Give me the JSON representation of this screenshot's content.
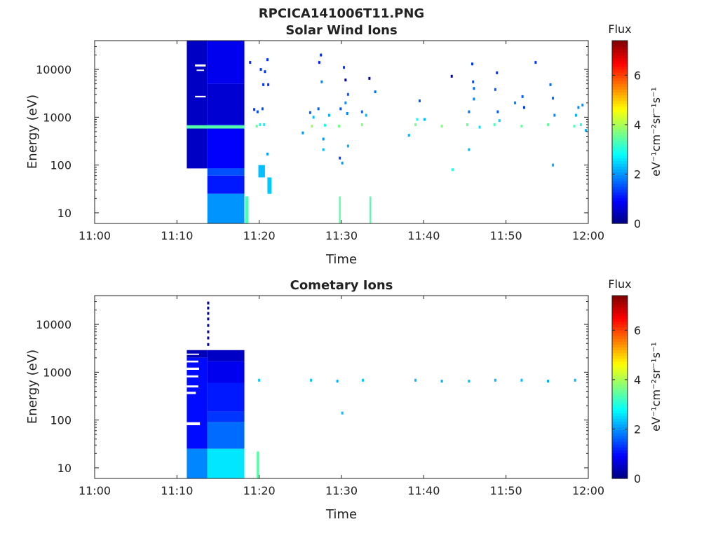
{
  "figure": {
    "title": "RPCICA141006T11.PNG"
  },
  "chart_data": [
    {
      "type": "heatmap",
      "title": "Solar Wind Ions",
      "xlabel": "Time",
      "ylabel": "Energy (eV)",
      "x_ticks": [
        "11:00",
        "11:10",
        "11:20",
        "11:30",
        "11:40",
        "11:50",
        "12:00"
      ],
      "xlim_minutes": [
        0,
        60
      ],
      "y_ticks": [
        "10",
        "100",
        "1000",
        "10000"
      ],
      "y_scale": "log",
      "ylim": [
        6,
        40000
      ],
      "colorbar": {
        "label": "Flux",
        "units": "eV⁻¹cm⁻²sr⁻¹s⁻¹",
        "ticks": [
          "0",
          "2",
          "4",
          "6"
        ],
        "range": [
          0,
          7.4
        ],
        "colormap": "jet"
      },
      "blocks": [
        {
          "t": [
            11.2,
            13.7
          ],
          "e": [
            85,
            40000
          ],
          "v": 0.5
        },
        {
          "t": [
            13.7,
            18.2
          ],
          "e": [
            5000,
            40000
          ],
          "v": 0.8
        },
        {
          "t": [
            13.7,
            18.2
          ],
          "e": [
            700,
            5000
          ],
          "v": 0.6
        },
        {
          "t": [
            13.7,
            18.2
          ],
          "e": [
            85,
            700
          ],
          "v": 0.9
        },
        {
          "t": [
            13.7,
            18.2
          ],
          "e": [
            60,
            85
          ],
          "v": 1.5
        },
        {
          "t": [
            13.7,
            18.2
          ],
          "e": [
            25,
            60
          ],
          "v": 1.1
        },
        {
          "t": [
            13.7,
            18.2
          ],
          "e": [
            6,
            25
          ],
          "v": 2.0
        },
        {
          "t": [
            11.2,
            18.2
          ],
          "e": [
            580,
            680
          ],
          "v": 3.4
        },
        {
          "t": [
            18.3,
            18.7
          ],
          "e": [
            6,
            22
          ],
          "v": 3.3
        },
        {
          "t": [
            29.7,
            29.9
          ],
          "e": [
            6,
            22
          ],
          "v": 3.4
        },
        {
          "t": [
            33.4,
            33.6
          ],
          "e": [
            6,
            22
          ],
          "v": 3.4
        },
        {
          "t": [
            19.9,
            20.7
          ],
          "e": [
            55,
            100
          ],
          "v": 2.3
        },
        {
          "t": [
            21.0,
            21.5
          ],
          "e": [
            25,
            55
          ],
          "v": 2.4
        }
      ],
      "points": [
        {
          "t": 18.9,
          "e": 14000,
          "v": 1.2
        },
        {
          "t": 20.2,
          "e": 10000,
          "v": 1.3
        },
        {
          "t": 20.7,
          "e": 9000,
          "v": 1.3
        },
        {
          "t": 20.5,
          "e": 4800,
          "v": 1.3
        },
        {
          "t": 21.1,
          "e": 4800,
          "v": 1.3
        },
        {
          "t": 21.0,
          "e": 16000,
          "v": 1.3
        },
        {
          "t": 19.4,
          "e": 1450,
          "v": 1.3
        },
        {
          "t": 19.8,
          "e": 1300,
          "v": 1.5
        },
        {
          "t": 20.4,
          "e": 1500,
          "v": 1.5
        },
        {
          "t": 20.1,
          "e": 700,
          "v": 2.9
        },
        {
          "t": 19.7,
          "e": 650,
          "v": 3.5
        },
        {
          "t": 20.6,
          "e": 700,
          "v": 2.7
        },
        {
          "t": 21.0,
          "e": 170,
          "v": 2.1
        },
        {
          "t": 25.3,
          "e": 470,
          "v": 2.0
        },
        {
          "t": 26.2,
          "e": 1250,
          "v": 1.6
        },
        {
          "t": 26.4,
          "e": 650,
          "v": 3.9
        },
        {
          "t": 26.6,
          "e": 1000,
          "v": 2.3
        },
        {
          "t": 27.2,
          "e": 1500,
          "v": 1.6
        },
        {
          "t": 27.5,
          "e": 20000,
          "v": 1.2
        },
        {
          "t": 27.3,
          "e": 14000,
          "v": 1.1
        },
        {
          "t": 27.6,
          "e": 5500,
          "v": 1.9
        },
        {
          "t": 27.8,
          "e": 350,
          "v": 2.0
        },
        {
          "t": 27.8,
          "e": 210,
          "v": 2.3
        },
        {
          "t": 28.0,
          "e": 680,
          "v": 2.9
        },
        {
          "t": 28.5,
          "e": 1100,
          "v": 2.2
        },
        {
          "t": 29.7,
          "e": 650,
          "v": 3.6
        },
        {
          "t": 29.8,
          "e": 140,
          "v": 1.4
        },
        {
          "t": 30.1,
          "e": 110,
          "v": 2.1
        },
        {
          "t": 29.9,
          "e": 1500,
          "v": 1.5
        },
        {
          "t": 30.3,
          "e": 11000,
          "v": 1.3
        },
        {
          "t": 30.5,
          "e": 6000,
          "v": 0.2
        },
        {
          "t": 30.5,
          "e": 2000,
          "v": 2.0
        },
        {
          "t": 30.8,
          "e": 3000,
          "v": 1.6
        },
        {
          "t": 30.7,
          "e": 1200,
          "v": 1.9
        },
        {
          "t": 30.8,
          "e": 250,
          "v": 2.2
        },
        {
          "t": 32.5,
          "e": 700,
          "v": 3.7
        },
        {
          "t": 32.5,
          "e": 1300,
          "v": 1.7
        },
        {
          "t": 33.0,
          "e": 1100,
          "v": 2.3
        },
        {
          "t": 33.4,
          "e": 6500,
          "v": 0.2
        },
        {
          "t": 34.1,
          "e": 3400,
          "v": 1.8
        },
        {
          "t": 38.2,
          "e": 420,
          "v": 2.2
        },
        {
          "t": 39.0,
          "e": 700,
          "v": 3.6
        },
        {
          "t": 39.2,
          "e": 900,
          "v": 2.9
        },
        {
          "t": 39.5,
          "e": 2200,
          "v": 1.6
        },
        {
          "t": 40.1,
          "e": 900,
          "v": 2.3
        },
        {
          "t": 42.2,
          "e": 650,
          "v": 3.7
        },
        {
          "t": 43.4,
          "e": 7200,
          "v": 0.3
        },
        {
          "t": 43.5,
          "e": 80,
          "v": 3.0
        },
        {
          "t": 45.3,
          "e": 700,
          "v": 3.5
        },
        {
          "t": 45.5,
          "e": 1300,
          "v": 1.8
        },
        {
          "t": 45.5,
          "e": 210,
          "v": 2.3
        },
        {
          "t": 45.9,
          "e": 13000,
          "v": 1.3
        },
        {
          "t": 46.0,
          "e": 5500,
          "v": 1.5
        },
        {
          "t": 46.1,
          "e": 4000,
          "v": 1.7
        },
        {
          "t": 46.1,
          "e": 2400,
          "v": 1.9
        },
        {
          "t": 46.8,
          "e": 620,
          "v": 2.6
        },
        {
          "t": 48.6,
          "e": 700,
          "v": 3.3
        },
        {
          "t": 48.7,
          "e": 3800,
          "v": 1.6
        },
        {
          "t": 48.9,
          "e": 8500,
          "v": 1.3
        },
        {
          "t": 49.0,
          "e": 1300,
          "v": 1.6
        },
        {
          "t": 49.2,
          "e": 850,
          "v": 2.5
        },
        {
          "t": 51.1,
          "e": 2000,
          "v": 1.9
        },
        {
          "t": 51.9,
          "e": 650,
          "v": 3.5
        },
        {
          "t": 52.0,
          "e": 2700,
          "v": 1.6
        },
        {
          "t": 52.2,
          "e": 1600,
          "v": 1.3
        },
        {
          "t": 53.6,
          "e": 14000,
          "v": 1.3
        },
        {
          "t": 55.1,
          "e": 700,
          "v": 3.5
        },
        {
          "t": 55.4,
          "e": 4800,
          "v": 1.7
        },
        {
          "t": 55.7,
          "e": 2500,
          "v": 1.7
        },
        {
          "t": 55.7,
          "e": 100,
          "v": 2.2
        },
        {
          "t": 55.9,
          "e": 1100,
          "v": 1.9
        },
        {
          "t": 58.3,
          "e": 650,
          "v": 3.3
        },
        {
          "t": 58.5,
          "e": 1100,
          "v": 2.2
        },
        {
          "t": 58.8,
          "e": 1600,
          "v": 1.9
        },
        {
          "t": 59.3,
          "e": 1800,
          "v": 2.0
        },
        {
          "t": 59.1,
          "e": 700,
          "v": 2.9
        },
        {
          "t": 59.7,
          "e": 530,
          "v": 2.2
        }
      ],
      "whites": [
        {
          "t": [
            12.2,
            13.5
          ],
          "e": [
            11500,
            12700
          ]
        },
        {
          "t": [
            12.4,
            13.3
          ],
          "e": [
            9300,
            9900
          ]
        },
        {
          "t": [
            12.2,
            13.5
          ],
          "e": [
            2600,
            2800
          ]
        }
      ]
    },
    {
      "type": "heatmap",
      "title": "Cometary Ions",
      "xlabel": "Time",
      "ylabel": "Energy (eV)",
      "x_ticks": [
        "11:00",
        "11:10",
        "11:20",
        "11:30",
        "11:40",
        "11:50",
        "12:00"
      ],
      "xlim_minutes": [
        0,
        60
      ],
      "y_ticks": [
        "10",
        "100",
        "1000",
        "10000"
      ],
      "y_scale": "log",
      "ylim": [
        6,
        40000
      ],
      "colorbar": {
        "label": "Flux",
        "units": "eV⁻¹cm⁻²sr⁻¹s⁻¹",
        "ticks": [
          "0",
          "2",
          "4",
          "6"
        ],
        "range": [
          0,
          7.4
        ],
        "colormap": "jet"
      },
      "blocks": [
        {
          "t": [
            11.2,
            13.7
          ],
          "e": [
            2000,
            2900
          ],
          "v": 0.4
        },
        {
          "t": [
            11.2,
            13.7
          ],
          "e": [
            25,
            2000
          ],
          "v": 1.0
        },
        {
          "t": [
            11.2,
            13.7
          ],
          "e": [
            6,
            25
          ],
          "v": 1.9
        },
        {
          "t": [
            13.7,
            18.2
          ],
          "e": [
            1700,
            2900
          ],
          "v": 0.5
        },
        {
          "t": [
            13.7,
            18.2
          ],
          "e": [
            600,
            1700
          ],
          "v": 0.8
        },
        {
          "t": [
            13.7,
            18.2
          ],
          "e": [
            150,
            600
          ],
          "v": 1.1
        },
        {
          "t": [
            13.7,
            18.2
          ],
          "e": [
            90,
            150
          ],
          "v": 1.3
        },
        {
          "t": [
            13.7,
            18.2
          ],
          "e": [
            25,
            90
          ],
          "v": 1.7
        },
        {
          "t": [
            13.7,
            18.2
          ],
          "e": [
            6,
            25
          ],
          "v": 2.6
        },
        {
          "t": [
            19.7,
            20.0
          ],
          "e": [
            6,
            22
          ],
          "v": 3.4
        }
      ],
      "points": [
        {
          "t": 13.8,
          "e": 28000,
          "v": 0.2
        },
        {
          "t": 13.8,
          "e": 22000,
          "v": 0.2
        },
        {
          "t": 13.8,
          "e": 17000,
          "v": 0.2
        },
        {
          "t": 13.8,
          "e": 13000,
          "v": 0.2
        },
        {
          "t": 13.8,
          "e": 9500,
          "v": 0.2
        },
        {
          "t": 13.8,
          "e": 7000,
          "v": 0.2
        },
        {
          "t": 13.8,
          "e": 5200,
          "v": 0.2
        },
        {
          "t": 13.8,
          "e": 3800,
          "v": 0.2
        },
        {
          "t": 20.0,
          "e": 680,
          "v": 2.4
        },
        {
          "t": 26.3,
          "e": 680,
          "v": 2.4
        },
        {
          "t": 29.5,
          "e": 650,
          "v": 2.2
        },
        {
          "t": 30.1,
          "e": 140,
          "v": 2.3
        },
        {
          "t": 32.6,
          "e": 680,
          "v": 2.4
        },
        {
          "t": 39.0,
          "e": 680,
          "v": 2.3
        },
        {
          "t": 42.2,
          "e": 650,
          "v": 2.2
        },
        {
          "t": 45.5,
          "e": 650,
          "v": 2.3
        },
        {
          "t": 48.7,
          "e": 680,
          "v": 2.3
        },
        {
          "t": 51.9,
          "e": 680,
          "v": 2.3
        },
        {
          "t": 55.1,
          "e": 650,
          "v": 2.2
        },
        {
          "t": 58.4,
          "e": 680,
          "v": 2.3
        }
      ],
      "whites": [
        {
          "t": [
            11.2,
            12.7
          ],
          "e": [
            2300,
            2450
          ]
        },
        {
          "t": [
            11.2,
            12.6
          ],
          "e": [
            1600,
            1750
          ]
        },
        {
          "t": [
            11.2,
            12.7
          ],
          "e": [
            1120,
            1250
          ]
        },
        {
          "t": [
            11.2,
            12.6
          ],
          "e": [
            780,
            860
          ]
        },
        {
          "t": [
            11.2,
            12.6
          ],
          "e": [
            480,
            530
          ]
        },
        {
          "t": [
            11.2,
            12.3
          ],
          "e": [
            350,
            390
          ]
        },
        {
          "t": [
            11.2,
            12.8
          ],
          "e": [
            78,
            90
          ]
        }
      ]
    }
  ]
}
